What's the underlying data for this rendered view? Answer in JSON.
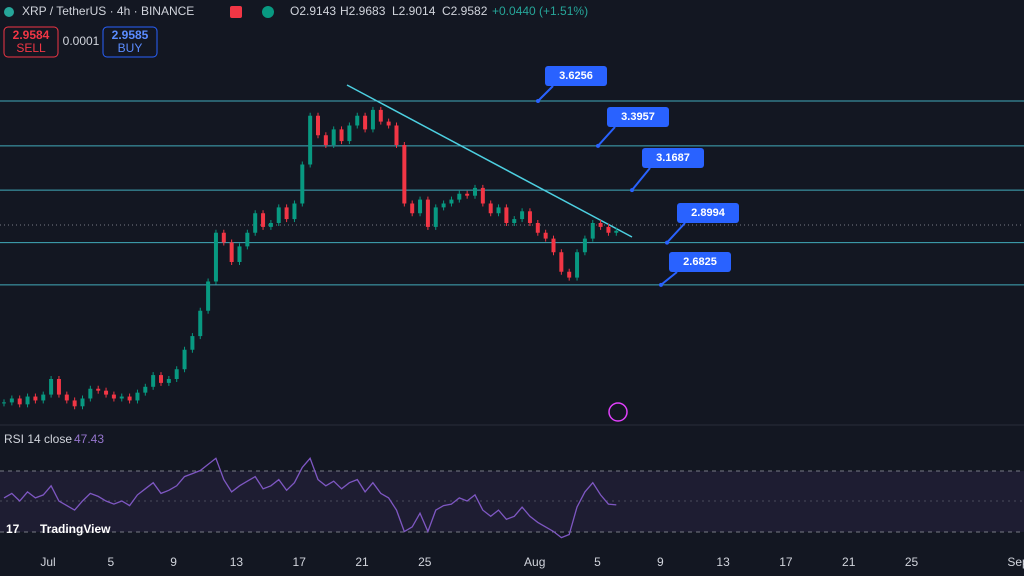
{
  "header": {
    "symbol": "XRP / TetherUS · 4h · BINANCE",
    "open": "O2.9143",
    "high": "H2.9683",
    "low": "L2.9014",
    "close": "C2.9582",
    "change": "+0.0440 (+1.51%)"
  },
  "trade": {
    "sell_price": "2.9584",
    "sell": "SELL",
    "spread": "0.0001",
    "buy_price": "2.9585",
    "buy": "BUY"
  },
  "levels": [
    3.6256,
    3.3957,
    3.1687,
    2.8994,
    2.6825
  ],
  "closes": [
    2.08,
    2.1,
    2.07,
    2.11,
    2.09,
    2.12,
    2.2,
    2.12,
    2.09,
    2.06,
    2.1,
    2.15,
    2.14,
    2.12,
    2.1,
    2.11,
    2.09,
    2.13,
    2.16,
    2.22,
    2.18,
    2.2,
    2.25,
    2.35,
    2.42,
    2.55,
    2.7,
    2.95,
    2.9,
    2.8,
    2.88,
    2.95,
    3.05,
    2.98,
    3.0,
    3.08,
    3.02,
    3.1,
    3.3,
    3.55,
    3.45,
    3.4,
    3.48,
    3.42,
    3.5,
    3.55,
    3.48,
    3.58,
    3.52,
    3.5,
    3.4,
    3.1,
    3.05,
    3.12,
    2.98,
    3.08,
    3.1,
    3.12,
    3.15,
    3.14,
    3.18,
    3.1,
    3.05,
    3.08,
    3.0,
    3.02,
    3.06,
    3.0,
    2.95,
    2.92,
    2.85,
    2.75,
    2.72,
    2.85,
    2.92,
    3.0,
    2.98,
    2.95,
    2.96
  ],
  "rsi": {
    "label": "RSI 14 close",
    "value": "47.43",
    "values": [
      52,
      55,
      50,
      56,
      52,
      54,
      60,
      50,
      47,
      44,
      50,
      55,
      53,
      50,
      48,
      50,
      47,
      54,
      58,
      62,
      55,
      57,
      60,
      66,
      68,
      70,
      74,
      78,
      64,
      56,
      60,
      63,
      66,
      58,
      60,
      64,
      57,
      62,
      72,
      78,
      64,
      60,
      63,
      58,
      62,
      64,
      56,
      62,
      55,
      52,
      44,
      30,
      33,
      42,
      30,
      44,
      47,
      48,
      52,
      50,
      54,
      44,
      40,
      44,
      38,
      40,
      46,
      40,
      36,
      33,
      30,
      26,
      28,
      46,
      56,
      62,
      54,
      48,
      47.43
    ]
  },
  "x_labels": [
    "Jul",
    "5",
    "9",
    "13",
    "17",
    "21",
    "25",
    "Aug",
    "5",
    "9",
    "13",
    "17",
    "21",
    "25",
    "Sep"
  ],
  "brand": "TradingView"
}
